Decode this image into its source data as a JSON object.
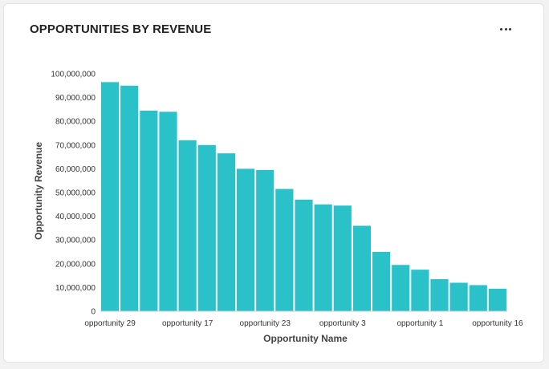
{
  "card": {
    "title": "OPPORTUNITIES BY REVENUE",
    "more_icon": "ellipsis-icon"
  },
  "colors": {
    "bar": "#2ac2c8",
    "axis": "#cccccc"
  },
  "chart_data": {
    "type": "bar",
    "xlabel": "Opportunity Name",
    "ylabel": "Opportunity Revenue",
    "ylim": [
      0,
      100000000
    ],
    "y_ticks": [
      0,
      10000000,
      20000000,
      30000000,
      40000000,
      50000000,
      60000000,
      70000000,
      80000000,
      90000000,
      100000000
    ],
    "y_tick_labels": [
      "0",
      "10,000,000",
      "20,000,000",
      "30,000,000",
      "40,000,000",
      "50,000,000",
      "60,000,000",
      "70,000,000",
      "80,000,000",
      "90,000,000",
      "100,000,000"
    ],
    "categories": [
      "opportunity 29",
      "",
      "",
      "",
      "opportunity 17",
      "",
      "",
      "",
      "opportunity 23",
      "",
      "",
      "",
      "opportunity 3",
      "",
      "",
      "",
      "opportunity 1",
      "",
      "",
      "",
      "opportunity 16"
    ],
    "values": [
      96500000,
      95000000,
      84500000,
      84000000,
      72000000,
      70000000,
      66500000,
      60000000,
      59500000,
      51500000,
      47000000,
      45000000,
      44500000,
      36000000,
      25000000,
      19500000,
      17500000,
      13500000,
      12000000,
      11000000,
      9500000
    ],
    "grid": false,
    "legend": "none"
  }
}
